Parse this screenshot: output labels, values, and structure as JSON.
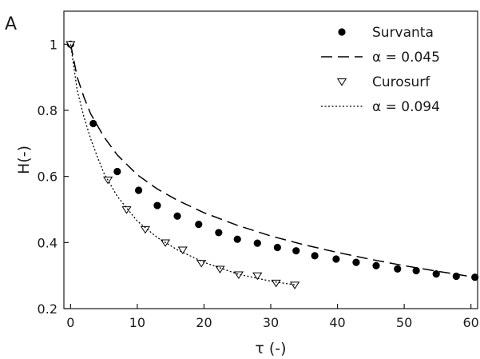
{
  "panel_label": "A",
  "chart_data": {
    "type": "scatter",
    "xlabel": "τ (-)",
    "ylabel": "H(-)",
    "xlim": [
      -1,
      61
    ],
    "ylim": [
      0.2,
      1.1
    ],
    "xticks": [
      0,
      10,
      20,
      30,
      40,
      50,
      60
    ],
    "yticks": [
      0.2,
      0.4,
      0.6,
      0.8,
      1
    ],
    "grid": false,
    "legend_position": "top-right",
    "series": [
      {
        "name": "Survanta",
        "kind": "points",
        "marker": "filled-circle",
        "color": "#000000",
        "x": [
          0,
          3.4,
          7,
          10.2,
          13,
          16,
          19.2,
          22.2,
          25,
          28,
          31,
          33.8,
          36.6,
          39.8,
          42.8,
          45.8,
          49,
          51.8,
          54.8,
          57.8,
          60.6
        ],
        "y": [
          1.0,
          0.76,
          0.615,
          0.558,
          0.512,
          0.48,
          0.455,
          0.43,
          0.41,
          0.398,
          0.385,
          0.375,
          0.36,
          0.35,
          0.34,
          0.33,
          0.32,
          0.315,
          0.305,
          0.298,
          0.295
        ]
      },
      {
        "name": "α = 0.045",
        "kind": "line",
        "dash": "dashed",
        "color": "#000000",
        "x": [
          0,
          1,
          2,
          3,
          5,
          7,
          10,
          13,
          16,
          20,
          25,
          30,
          35,
          40,
          45,
          50,
          55,
          60,
          61
        ],
        "y": [
          1.0,
          0.9,
          0.84,
          0.79,
          0.72,
          0.665,
          0.605,
          0.562,
          0.528,
          0.49,
          0.452,
          0.42,
          0.393,
          0.37,
          0.349,
          0.33,
          0.313,
          0.297,
          0.294
        ]
      },
      {
        "name": "Curosurf",
        "kind": "points",
        "marker": "open-triangle-down",
        "color": "#000000",
        "x": [
          0,
          5.6,
          8.4,
          11.2,
          14.2,
          16.8,
          19.6,
          22.4,
          25.2,
          28,
          30.8,
          33.6
        ],
        "y": [
          1.0,
          0.59,
          0.5,
          0.44,
          0.4,
          0.378,
          0.338,
          0.32,
          0.303,
          0.3,
          0.278,
          0.272
        ]
      },
      {
        "name": "α = 0.094",
        "kind": "line",
        "dash": "dotted",
        "color": "#000000",
        "x": [
          0,
          1,
          2,
          3,
          4,
          5,
          7,
          10,
          13,
          16,
          20,
          25,
          30,
          33.6
        ],
        "y": [
          1.0,
          0.86,
          0.78,
          0.715,
          0.66,
          0.61,
          0.54,
          0.465,
          0.415,
          0.378,
          0.34,
          0.305,
          0.283,
          0.272
        ]
      }
    ]
  }
}
